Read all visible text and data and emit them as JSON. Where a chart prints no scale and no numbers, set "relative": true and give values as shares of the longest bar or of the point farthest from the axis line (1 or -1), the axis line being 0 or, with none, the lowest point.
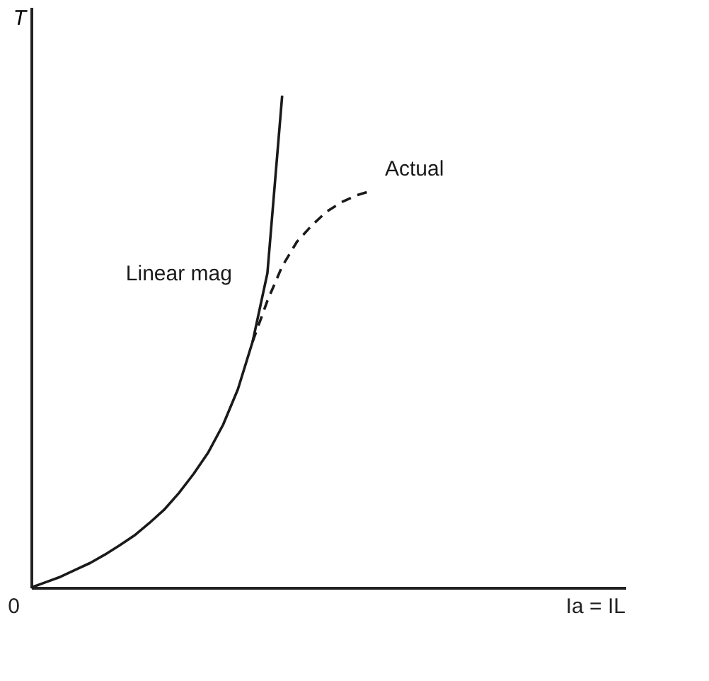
{
  "chart_data": {
    "type": "line",
    "relative": true,
    "ylabel": "T",
    "grid": false,
    "legend": false,
    "marker": "none",
    "annotations": [
      "0",
      "Ia = IL"
    ],
    "categories": [
      null,
      null,
      null,
      null,
      null,
      null,
      null,
      null,
      null,
      null,
      null,
      null,
      null,
      null,
      null,
      null,
      null,
      null,
      null,
      null,
      null,
      null,
      null,
      null
    ],
    "series": [
      {
        "name": "Linear mag",
        "color": "#1a1a1a",
        "line_style": "solid",
        "values": [
          0,
          0.011,
          0.022,
          0.036,
          0.05,
          0.067,
          0.086,
          0.106,
          0.131,
          0.158,
          0.192,
          0.231,
          0.275,
          0.331,
          0.403,
          0.5,
          0.639,
          1,
          null,
          null,
          null,
          null,
          null,
          null
        ]
      },
      {
        "name": "Actual",
        "color": "#1a1a1a",
        "line_style": "dashed",
        "values": [
          null,
          null,
          null,
          null,
          null,
          null,
          null,
          null,
          null,
          null,
          null,
          null,
          null,
          null,
          null,
          0.5,
          0.583,
          0.653,
          0.703,
          0.736,
          0.764,
          0.783,
          0.797,
          0.806
        ]
      }
    ]
  }
}
